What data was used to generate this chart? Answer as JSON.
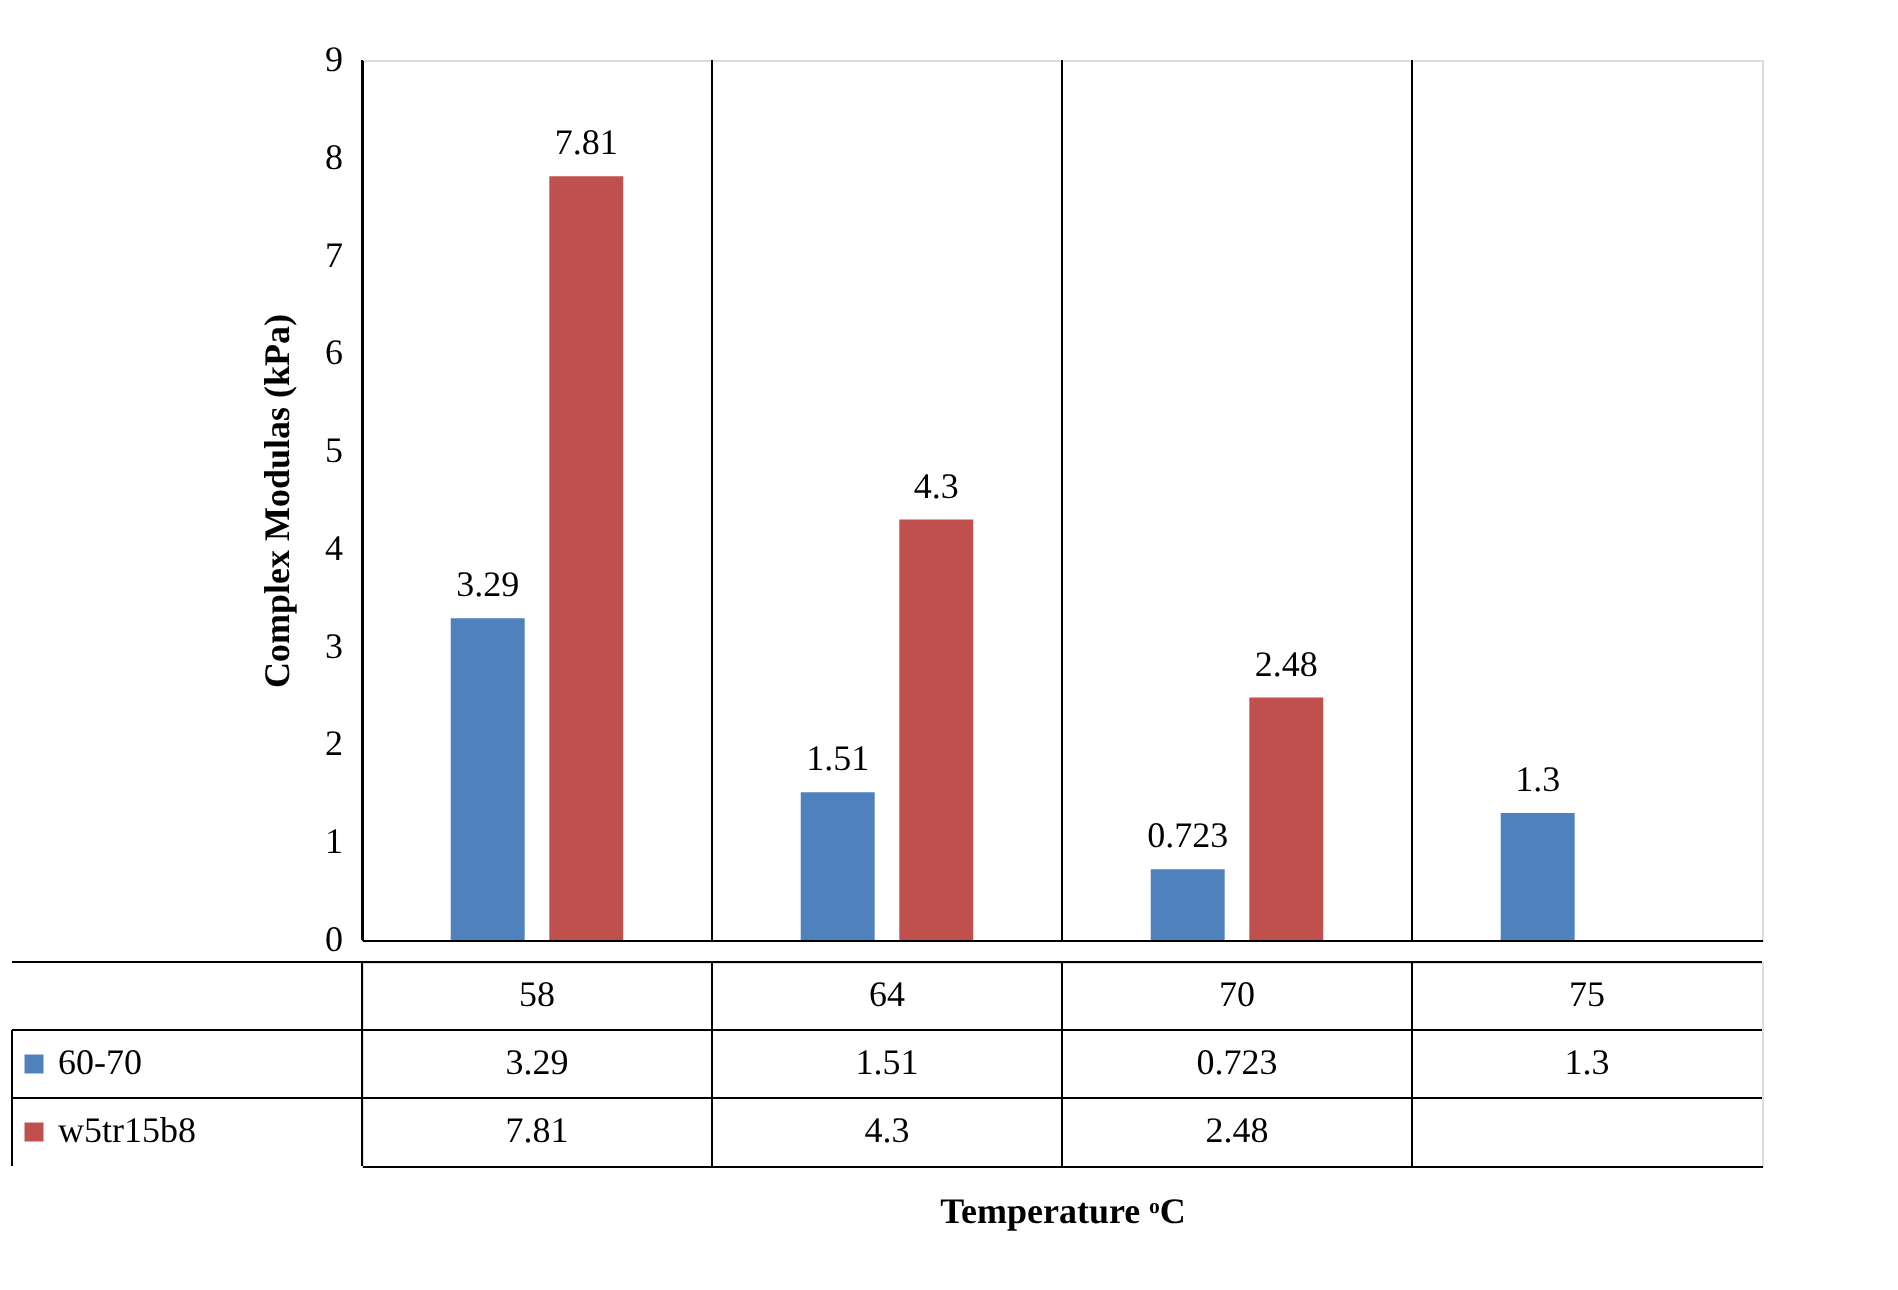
{
  "chart_data": {
    "type": "bar",
    "xlabel": "Temperature ᵒC",
    "ylabel": "Complex Modulas (kPa)",
    "categories": [
      "58",
      "64",
      "70",
      "75"
    ],
    "series": [
      {
        "name": "60-70",
        "color": "#4f81bd",
        "values": [
          3.29,
          1.51,
          0.723,
          1.3
        ],
        "value_labels": [
          "3.29",
          "1.51",
          "0.723",
          "1.3"
        ]
      },
      {
        "name": "w5tr15b8",
        "color": "#c0504d",
        "values": [
          7.81,
          4.3,
          2.48,
          null
        ],
        "value_labels": [
          "7.81",
          "4.3",
          "2.48",
          null
        ]
      }
    ],
    "ylim": [
      0,
      9
    ],
    "yticks": [
      0,
      1,
      2,
      3,
      4,
      5,
      6,
      7,
      8,
      9
    ],
    "grid": "x",
    "legend": "bottom"
  }
}
